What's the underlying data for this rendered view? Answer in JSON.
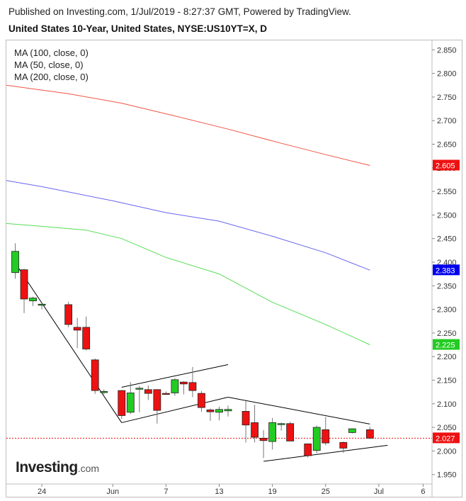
{
  "header": {
    "published": "Published on Investing.com, 1/Jul/2019 - 8:27:37 GMT, Powered by TradingView.",
    "title": "United States 10-Year, United States, NYSE:US10YT=X, D"
  },
  "legend": [
    "MA (100, close, 0)",
    "MA (50, close, 0)",
    "MA (200, close, 0)"
  ],
  "logo": {
    "word": "Investing",
    "suffix": ".com"
  },
  "colors": {
    "up": "#22cc22",
    "down": "#ee1111",
    "ma100": "#6666ee",
    "ma50": "#55dd55",
    "ma200": "#ee5544",
    "trend": "#000000"
  },
  "chart_data": {
    "type": "candlestick",
    "y_ticks": [
      "2.850",
      "2.800",
      "2.750",
      "2.700",
      "2.650",
      "2.600",
      "2.550",
      "2.500",
      "2.450",
      "2.400",
      "2.350",
      "2.300",
      "2.250",
      "2.200",
      "2.150",
      "2.100",
      "2.050",
      "2.000",
      "1.950"
    ],
    "ylim": [
      1.93,
      2.87
    ],
    "x_ticks": [
      "24",
      "Jun",
      "7",
      "13",
      "19",
      "25",
      "Jul",
      "6"
    ],
    "x_tick_dates": [
      "2019-05-24",
      "2019-06-01",
      "2019-06-07",
      "2019-06-13",
      "2019-06-19",
      "2019-06-25",
      "2019-07-01",
      "2019-07-06"
    ],
    "xlim": [
      "2019-05-20",
      "2019-07-07"
    ],
    "candles": [
      {
        "date": "2019-05-21",
        "open": 2.378,
        "high": 2.44,
        "low": 2.365,
        "close": 2.423
      },
      {
        "date": "2019-05-22",
        "open": 2.384,
        "high": 2.386,
        "low": 2.292,
        "close": 2.322
      },
      {
        "date": "2019-05-23",
        "open": 2.318,
        "high": 2.327,
        "low": 2.307,
        "close": 2.324
      },
      {
        "date": "2019-05-24",
        "open": 2.309,
        "high": 2.314,
        "low": 2.3,
        "close": 2.311
      },
      {
        "date": "2019-05-27",
        "open": 2.31,
        "high": 2.316,
        "low": 2.262,
        "close": 2.268
      },
      {
        "date": "2019-05-28",
        "open": 2.262,
        "high": 2.282,
        "low": 2.218,
        "close": 2.256
      },
      {
        "date": "2019-05-29",
        "open": 2.262,
        "high": 2.285,
        "low": 2.213,
        "close": 2.216
      },
      {
        "date": "2019-05-30",
        "open": 2.193,
        "high": 2.196,
        "low": 2.121,
        "close": 2.128
      },
      {
        "date": "2019-05-31",
        "open": 2.124,
        "high": 2.13,
        "low": 2.12,
        "close": 2.126
      },
      {
        "date": "2019-06-02",
        "open": 2.128,
        "high": 2.129,
        "low": 2.068,
        "close": 2.075
      },
      {
        "date": "2019-06-03",
        "open": 2.082,
        "high": 2.146,
        "low": 2.078,
        "close": 2.123
      },
      {
        "date": "2019-06-04",
        "open": 2.131,
        "high": 2.138,
        "low": 2.082,
        "close": 2.133
      },
      {
        "date": "2019-06-05",
        "open": 2.13,
        "high": 2.139,
        "low": 2.108,
        "close": 2.122
      },
      {
        "date": "2019-06-06",
        "open": 2.13,
        "high": 2.131,
        "low": 2.058,
        "close": 2.086
      },
      {
        "date": "2019-06-07",
        "open": 2.122,
        "high": 2.126,
        "low": 2.119,
        "close": 2.121
      },
      {
        "date": "2019-06-08",
        "open": 2.123,
        "high": 2.154,
        "low": 2.117,
        "close": 2.151
      },
      {
        "date": "2019-06-09",
        "open": 2.146,
        "high": 2.148,
        "low": 2.12,
        "close": 2.142
      },
      {
        "date": "2019-06-10",
        "open": 2.145,
        "high": 2.178,
        "low": 2.114,
        "close": 2.128
      },
      {
        "date": "2019-06-11",
        "open": 2.122,
        "high": 2.127,
        "low": 2.083,
        "close": 2.092
      },
      {
        "date": "2019-06-12",
        "open": 2.087,
        "high": 2.09,
        "low": 2.064,
        "close": 2.083
      },
      {
        "date": "2019-06-13",
        "open": 2.082,
        "high": 2.094,
        "low": 2.065,
        "close": 2.088
      },
      {
        "date": "2019-06-14",
        "open": 2.085,
        "high": 2.096,
        "low": 2.073,
        "close": 2.088
      },
      {
        "date": "2019-06-16",
        "open": 2.084,
        "high": 2.106,
        "low": 2.018,
        "close": 2.055
      },
      {
        "date": "2019-06-17",
        "open": 2.06,
        "high": 2.098,
        "low": 2.018,
        "close": 2.029
      },
      {
        "date": "2019-06-18",
        "open": 2.027,
        "high": 2.044,
        "low": 1.985,
        "close": 2.022
      },
      {
        "date": "2019-06-19",
        "open": 2.02,
        "high": 2.07,
        "low": 2.003,
        "close": 2.06
      },
      {
        "date": "2019-06-20",
        "open": 2.058,
        "high": 2.06,
        "low": 2.043,
        "close": 2.058
      },
      {
        "date": "2019-06-21",
        "open": 2.058,
        "high": 2.062,
        "low": 2.021,
        "close": 2.021
      },
      {
        "date": "2019-06-23",
        "open": 2.015,
        "high": 2.016,
        "low": 1.986,
        "close": 1.99
      },
      {
        "date": "2019-06-24",
        "open": 2.001,
        "high": 2.054,
        "low": 1.995,
        "close": 2.05
      },
      {
        "date": "2019-06-25",
        "open": 2.045,
        "high": 2.072,
        "low": 2.012,
        "close": 2.017
      },
      {
        "date": "2019-06-27",
        "open": 2.018,
        "high": 2.02,
        "low": 1.996,
        "close": 2.006
      },
      {
        "date": "2019-06-28",
        "open": 2.039,
        "high": 2.048,
        "low": 2.037,
        "close": 2.047
      },
      {
        "date": "2019-06-30",
        "open": 2.045,
        "high": 2.051,
        "low": 2.026,
        "close": 2.027
      }
    ],
    "moving_averages": [
      {
        "name": "MA (100, close, 0)",
        "color": "#6666ee",
        "points": [
          [
            "2019-05-20",
            2.573
          ],
          [
            "2019-05-24",
            2.56
          ],
          [
            "2019-06-01",
            2.53
          ],
          [
            "2019-06-07",
            2.505
          ],
          [
            "2019-06-13",
            2.487
          ],
          [
            "2019-06-19",
            2.455
          ],
          [
            "2019-06-25",
            2.42
          ],
          [
            "2019-06-30",
            2.383
          ]
        ]
      },
      {
        "name": "MA (50, close, 0)",
        "color": "#55dd55",
        "points": [
          [
            "2019-05-20",
            2.482
          ],
          [
            "2019-05-24",
            2.476
          ],
          [
            "2019-05-29",
            2.468
          ],
          [
            "2019-06-02",
            2.45
          ],
          [
            "2019-06-07",
            2.41
          ],
          [
            "2019-06-13",
            2.375
          ],
          [
            "2019-06-19",
            2.315
          ],
          [
            "2019-06-25",
            2.268
          ],
          [
            "2019-06-30",
            2.225
          ]
        ]
      },
      {
        "name": "MA (200, close, 0)",
        "color": "#ee5544",
        "points": [
          [
            "2019-05-20",
            2.775
          ],
          [
            "2019-05-27",
            2.757
          ],
          [
            "2019-06-02",
            2.737
          ],
          [
            "2019-06-08",
            2.71
          ],
          [
            "2019-06-14",
            2.682
          ],
          [
            "2019-06-20",
            2.652
          ],
          [
            "2019-06-25",
            2.628
          ],
          [
            "2019-06-30",
            2.605
          ]
        ]
      }
    ],
    "trendlines": [
      [
        [
          "2019-05-21",
          2.398
        ],
        [
          "2019-06-02",
          2.06
        ]
      ],
      [
        [
          "2019-06-02",
          2.06
        ],
        [
          "2019-06-14",
          2.114
        ]
      ],
      [
        [
          "2019-06-02",
          2.135
        ],
        [
          "2019-06-14",
          2.183
        ]
      ],
      [
        [
          "2019-06-14",
          2.114
        ],
        [
          "2019-06-30",
          2.057
        ]
      ],
      [
        [
          "2019-06-18",
          1.978
        ],
        [
          "2019-07-02",
          2.012
        ]
      ]
    ],
    "price_labels": [
      {
        "value": 2.605,
        "text": "2.605",
        "color": "#ee1111"
      },
      {
        "value": 2.383,
        "text": "2.383",
        "color": "#0000ee"
      },
      {
        "value": 2.225,
        "text": "2.225",
        "color": "#22cc22"
      },
      {
        "value": 2.027,
        "text": "2.027",
        "color": "#ee1111"
      }
    ],
    "last_price_line": 2.027
  }
}
